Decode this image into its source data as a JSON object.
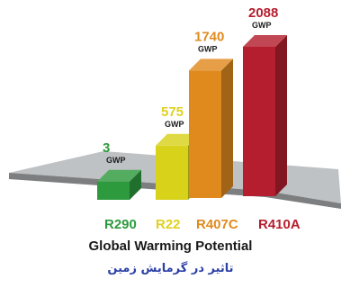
{
  "chart_data": {
    "type": "bar",
    "categories": [
      "R290",
      "R22",
      "R407C",
      "R410A"
    ],
    "values": [
      3,
      575,
      1740,
      2088
    ],
    "value_unit": "GWP",
    "ylim": [
      0,
      2088
    ],
    "grid": false,
    "legend": "none",
    "title": "Global Warming Potential",
    "subtitle": "تاثیر در گرمایش زمین",
    "colors": [
      "#2e9a3e",
      "#d8d21a",
      "#e08a1e",
      "#b51e2e"
    ],
    "value_colors": [
      "#2e9a3e",
      "#e0d020",
      "#e08a1e",
      "#b51e2e"
    ],
    "unit_color": "#1a1a1a",
    "platform_color": "#bfc2c4"
  }
}
